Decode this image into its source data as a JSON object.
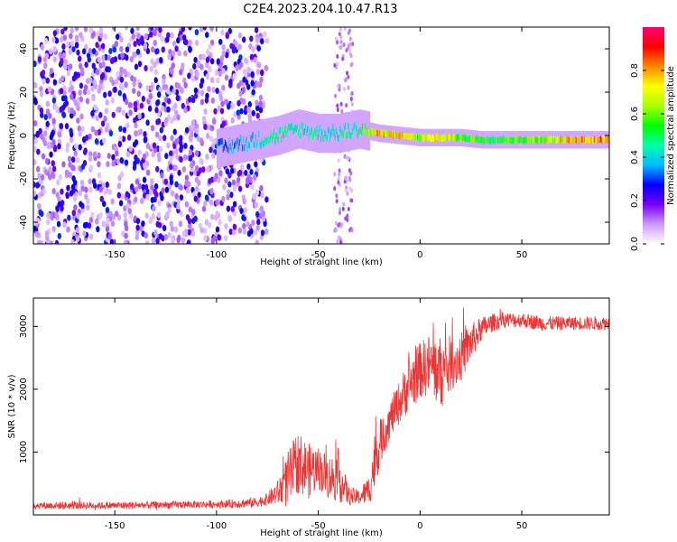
{
  "title": "C2E4.2023.204.10.47.R13",
  "chart_data": [
    {
      "type": "heatmap",
      "xlabel": "Height of straight line (km)",
      "ylabel": "Frequency (Hz)",
      "xlim": [
        -190,
        93
      ],
      "ylim": [
        -50,
        50
      ],
      "xticks": [
        -150,
        -100,
        -50,
        0,
        50
      ],
      "xtick_labels": [
        "-150",
        "-100",
        "-50",
        "0",
        "50"
      ],
      "yticks": [
        -40,
        -20,
        0,
        20,
        40
      ],
      "ytick_labels": [
        "-40",
        "-20",
        "0",
        "20",
        "40"
      ],
      "colorbar": {
        "label": "Normalized spectral amplitude",
        "range": [
          0,
          1
        ],
        "ticks": [
          0.0,
          0.2,
          0.4,
          0.6,
          0.8
        ],
        "tick_labels": [
          "0.0",
          "0.2",
          "0.4",
          "0.6",
          "0.8"
        ],
        "colormap": [
          "#ffffff",
          "#cc99ff",
          "#7700ff",
          "#0000ff",
          "#00bbff",
          "#00ffaa",
          "#00ff00",
          "#aaff00",
          "#ffff00",
          "#ff8800",
          "#ff0000",
          "#ff0077"
        ]
      },
      "ridge": {
        "x": [
          -100,
          -90,
          -80,
          -70,
          -60,
          -50,
          -40,
          -30,
          -20,
          -10,
          0,
          10,
          20,
          30,
          40,
          50,
          60,
          70,
          80,
          93
        ],
        "freq_hz": [
          -6,
          -4,
          -2,
          0,
          3,
          1,
          1,
          3,
          1,
          0,
          -1,
          -1,
          -1,
          -2,
          -2,
          -2,
          -2,
          -2,
          -2,
          -2
        ],
        "amplitude": [
          0.35,
          0.4,
          0.45,
          0.5,
          0.5,
          0.45,
          0.5,
          0.55,
          0.85,
          0.8,
          0.7,
          0.8,
          0.65,
          0.6,
          0.6,
          0.65,
          0.7,
          0.8,
          0.85,
          0.95
        ]
      },
      "grid": false,
      "grid_color": "#000000"
    },
    {
      "type": "line",
      "xlabel": "Height of straight line (km)",
      "ylabel": "SNR (10 * v/v)",
      "xlim": [
        -190,
        93
      ],
      "ylim": [
        0,
        3450
      ],
      "xticks": [
        -150,
        -100,
        -50,
        0,
        50
      ],
      "xtick_labels": [
        "-150",
        "-100",
        "-50",
        "0",
        "50"
      ],
      "yticks": [
        1000,
        2000,
        3000
      ],
      "ytick_labels": [
        "1000",
        "2000",
        "3000"
      ],
      "series_color": "#ee3333",
      "x": [
        -190,
        -180,
        -170,
        -160,
        -150,
        -140,
        -130,
        -120,
        -110,
        -100,
        -90,
        -80,
        -75,
        -70,
        -65,
        -60,
        -55,
        -50,
        -45,
        -40,
        -35,
        -30,
        -25,
        -22,
        -20,
        -15,
        -10,
        -5,
        0,
        5,
        10,
        15,
        20,
        25,
        30,
        35,
        40,
        50,
        60,
        70,
        80,
        93
      ],
      "y": [
        150,
        150,
        150,
        150,
        150,
        155,
        155,
        160,
        165,
        170,
        180,
        200,
        250,
        350,
        550,
        850,
        700,
        750,
        600,
        600,
        300,
        280,
        400,
        900,
        1100,
        1500,
        1800,
        2100,
        2300,
        2400,
        2250,
        2400,
        2500,
        2750,
        2950,
        3050,
        3100,
        3100,
        3050,
        3050,
        3050,
        3050
      ],
      "noise_amplitude": [
        60,
        60,
        60,
        60,
        60,
        60,
        60,
        60,
        60,
        60,
        70,
        80,
        100,
        200,
        450,
        500,
        450,
        350,
        350,
        400,
        150,
        120,
        250,
        500,
        350,
        300,
        350,
        450,
        450,
        500,
        600,
        450,
        400,
        300,
        200,
        150,
        130,
        120,
        120,
        110,
        110,
        110
      ],
      "grid": false
    }
  ]
}
